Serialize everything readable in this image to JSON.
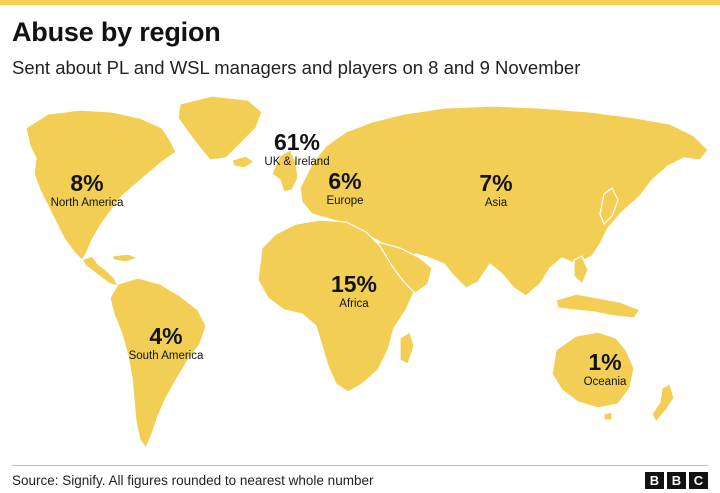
{
  "header": {
    "title": "Abuse by region",
    "subtitle": "Sent about PL and WSL managers and players on 8 and 9 November"
  },
  "colors": {
    "land": "#f2cf54",
    "accent_bar": "#f2cf54",
    "text": "#121212"
  },
  "regions": [
    {
      "id": "uk-ireland",
      "name": "UK & Ireland",
      "percent": "61%",
      "value": 61
    },
    {
      "id": "north-america",
      "name": "North America",
      "percent": "8%",
      "value": 8
    },
    {
      "id": "asia",
      "name": "Asia",
      "percent": "7%",
      "value": 7
    },
    {
      "id": "europe",
      "name": "Europe",
      "percent": "6%",
      "value": 6
    },
    {
      "id": "africa",
      "name": "Africa",
      "percent": "15%",
      "value": 15
    },
    {
      "id": "south-america",
      "name": "South America",
      "percent": "4%",
      "value": 4
    },
    {
      "id": "oceania",
      "name": "Oceania",
      "percent": "1%",
      "value": 1
    }
  ],
  "footer": {
    "source": "Source: Signify. All figures rounded to nearest whole number",
    "logo_letters": [
      "B",
      "B",
      "C"
    ]
  }
}
